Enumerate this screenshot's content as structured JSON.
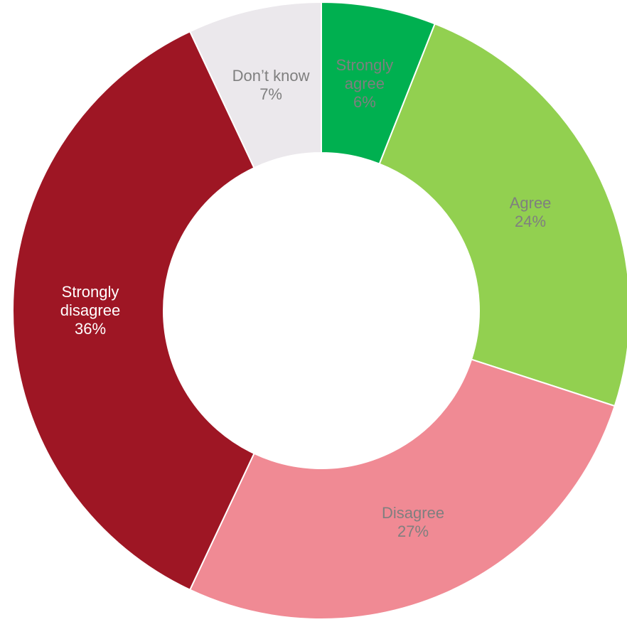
{
  "chart_data": {
    "type": "donut",
    "categories": [
      "Strongly agree",
      "Agree",
      "Disagree",
      "Strongly disagree",
      "Don’t know"
    ],
    "values": [
      6,
      24,
      27,
      36,
      7
    ],
    "value_labels": [
      "6%",
      "24%",
      "27%",
      "36%",
      "7%"
    ],
    "colors": [
      "#00b050",
      "#92d050",
      "#f08a94",
      "#9e1624",
      "#ebe8ec"
    ]
  }
}
